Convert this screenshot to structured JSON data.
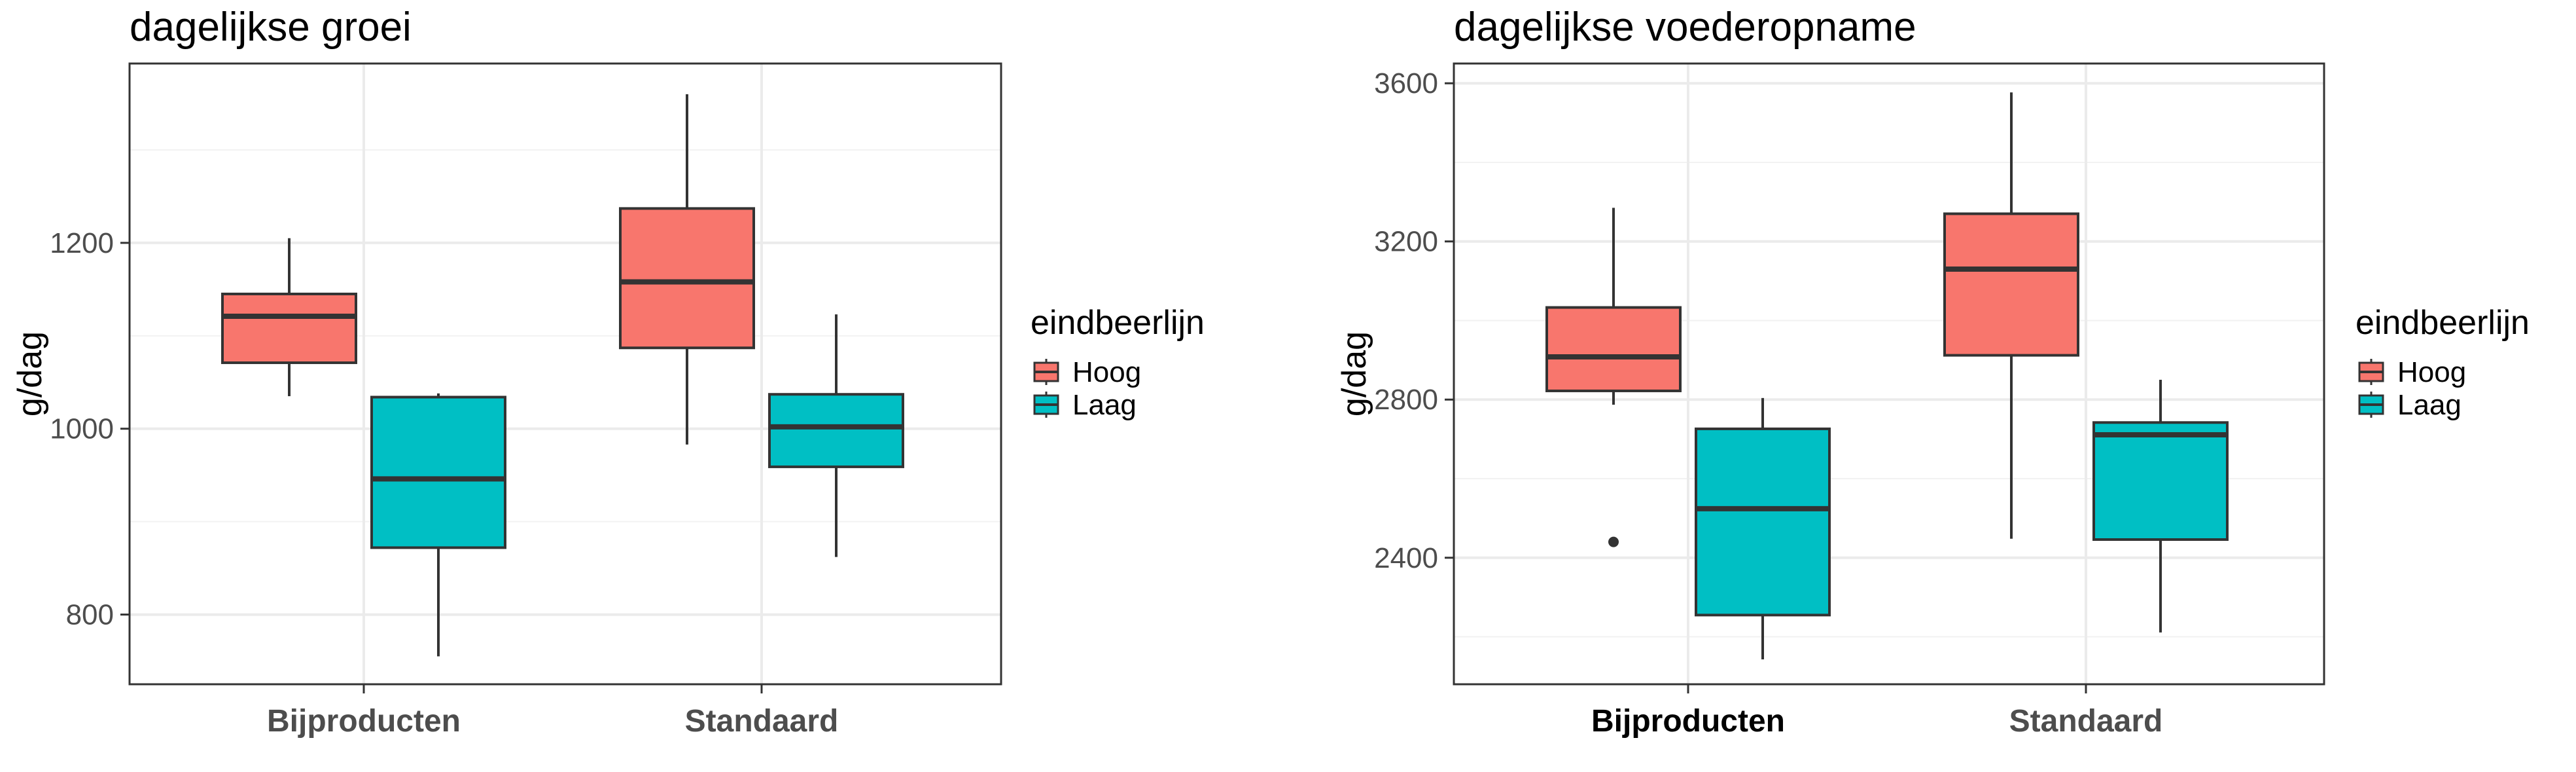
{
  "chart_data": [
    {
      "type": "boxplot",
      "title": "dagelijkse groei",
      "xlabel": "",
      "ylabel": "g/dag",
      "ylim": [
        725,
        1393
      ],
      "yticks": [
        800,
        1000,
        1200
      ],
      "categories": [
        "Bijproducten",
        "Standaard"
      ],
      "grid": true,
      "legend": {
        "title": "eindbeerlijn",
        "position": "right",
        "entries": [
          "Hoog",
          "Laag"
        ]
      },
      "series": [
        {
          "name": "Hoog",
          "color": "#F8766D",
          "boxes": [
            {
              "category": "Bijproducten",
              "whisker_low": 1035,
              "q1": 1071,
              "median": 1121,
              "q3": 1145,
              "whisker_high": 1205,
              "outliers": []
            },
            {
              "category": "Standaard",
              "whisker_low": 983,
              "q1": 1087,
              "median": 1158,
              "q3": 1237,
              "whisker_high": 1360,
              "outliers": []
            }
          ]
        },
        {
          "name": "Laag",
          "color": "#00BFC4",
          "boxes": [
            {
              "category": "Bijproducten",
              "whisker_low": 755,
              "q1": 872,
              "median": 946,
              "q3": 1034,
              "whisker_high": 1038,
              "outliers": []
            },
            {
              "category": "Standaard",
              "whisker_low": 862,
              "q1": 959,
              "median": 1002,
              "q3": 1037,
              "whisker_high": 1123,
              "outliers": []
            }
          ]
        }
      ]
    },
    {
      "type": "boxplot",
      "title": "dagelijkse voederopname",
      "xlabel": "",
      "ylabel": "g/dag",
      "ylim": [
        2080,
        3650
      ],
      "yticks": [
        2400,
        2800,
        3200,
        3600
      ],
      "categories": [
        "Bijproducten",
        "Standaard"
      ],
      "grid": true,
      "legend": {
        "title": "eindbeerlijn",
        "position": "right",
        "entries": [
          "Hoog",
          "Laag"
        ]
      },
      "series": [
        {
          "name": "Hoog",
          "color": "#F8766D",
          "boxes": [
            {
              "category": "Bijproducten",
              "whisker_low": 2787,
              "q1": 2822,
              "median": 2908,
              "q3": 3033,
              "whisker_high": 3285,
              "outliers": [
                2440
              ]
            },
            {
              "category": "Standaard",
              "whisker_low": 2448,
              "q1": 2912,
              "median": 3130,
              "q3": 3270,
              "whisker_high": 3577,
              "outliers": []
            }
          ]
        },
        {
          "name": "Laag",
          "color": "#00BFC4",
          "boxes": [
            {
              "category": "Bijproducten",
              "whisker_low": 2143,
              "q1": 2255,
              "median": 2524,
              "q3": 2726,
              "whisker_high": 2804,
              "outliers": []
            },
            {
              "category": "Standaard",
              "whisker_low": 2211,
              "q1": 2446,
              "median": 2711,
              "q3": 2742,
              "whisker_high": 2850,
              "outliers": []
            }
          ]
        }
      ]
    }
  ]
}
